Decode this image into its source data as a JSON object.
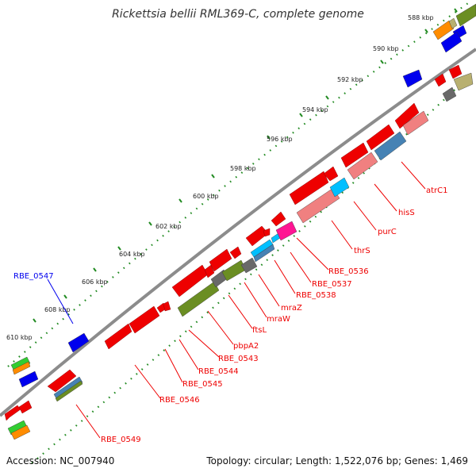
{
  "title": "Rickettsia bellii RML369-C, complete genome",
  "footer": {
    "accession": "Accession: NC_007940",
    "summary": "Topology: circular; Length: 1,522,076 bp; Genes: 1,469"
  },
  "colors": {
    "red": "#ee0000",
    "pink": "#f08080",
    "blue": "#0000ee",
    "steel": "#4682b4",
    "olive": "#6b8e23",
    "gray": "#696969",
    "cyan": "#00bfff",
    "magenta": "#ff1493",
    "orange": "#ff8c00",
    "green": "#32cd32",
    "khaki": "#b8b070",
    "backbone": "#8c8c8c",
    "tick": "#228b22"
  },
  "kbp_labels": [
    "588 kbp",
    "590 kbp",
    "592 kbp",
    "594 kbp",
    "596 kbp",
    "598 kbp",
    "600 kbp",
    "602 kbp",
    "604 kbp",
    "606 kbp",
    "608 kbp",
    "610 kbp"
  ],
  "gene_labels": [
    {
      "text": "atrC1",
      "color": "red"
    },
    {
      "text": "hisS",
      "color": "red"
    },
    {
      "text": "purC",
      "color": "red"
    },
    {
      "text": "thrS",
      "color": "red"
    },
    {
      "text": "RBE_0536",
      "color": "red"
    },
    {
      "text": "RBE_0537",
      "color": "red"
    },
    {
      "text": "RBE_0538",
      "color": "red"
    },
    {
      "text": "mraZ",
      "color": "red"
    },
    {
      "text": "mraW",
      "color": "red"
    },
    {
      "text": "ftsL",
      "color": "red"
    },
    {
      "text": "pbpA2",
      "color": "red"
    },
    {
      "text": "RBE_0543",
      "color": "red"
    },
    {
      "text": "RBE_0544",
      "color": "red"
    },
    {
      "text": "RBE_0545",
      "color": "red"
    },
    {
      "text": "RBE_0546",
      "color": "red"
    },
    {
      "text": "RBE_0549",
      "color": "red"
    },
    {
      "text": "RBE_0547",
      "color": "blue"
    }
  ]
}
